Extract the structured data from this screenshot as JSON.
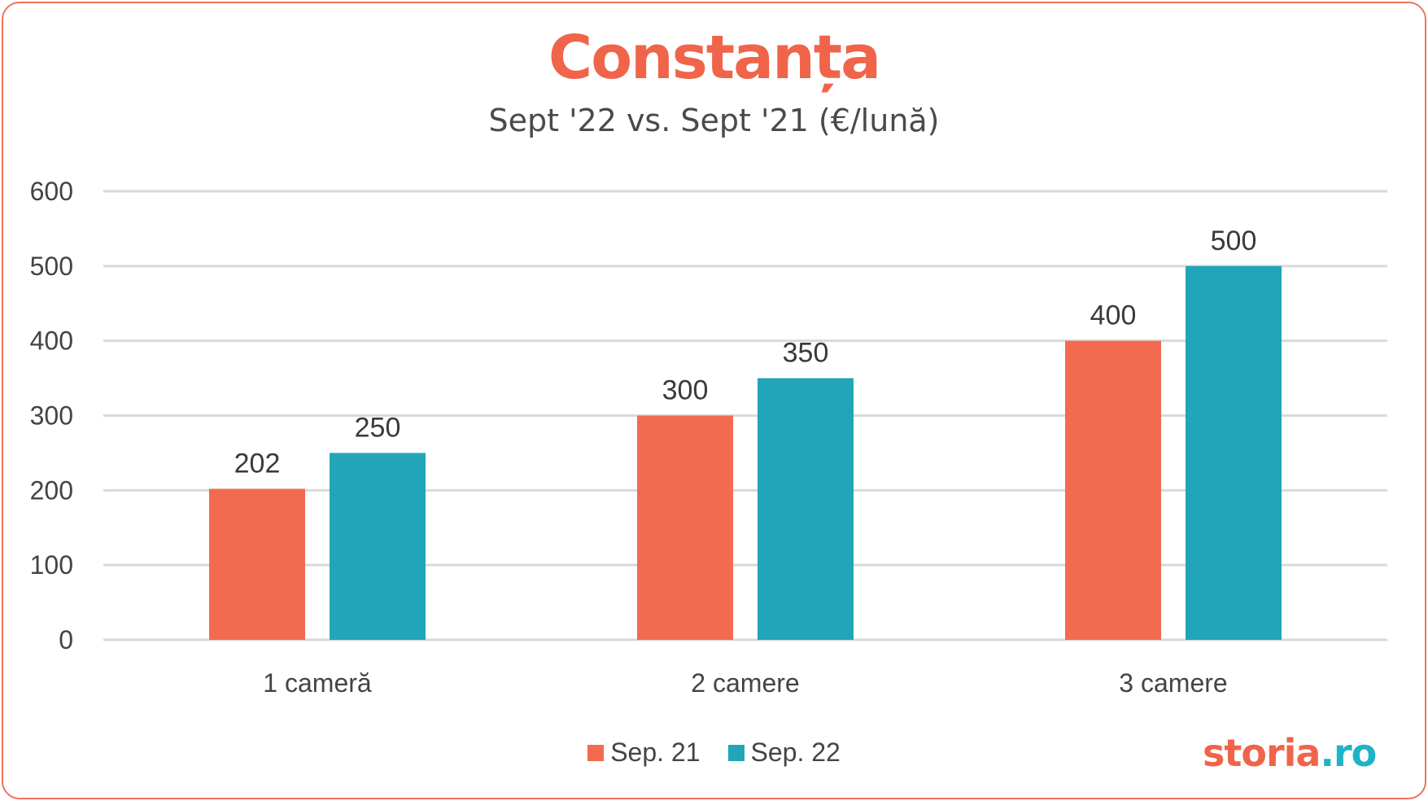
{
  "title": "Constanța",
  "subtitle": "Sept '22 vs. Sept '21 (€/lună)",
  "brand": {
    "name": "storia",
    "tld": ".ro"
  },
  "colors": {
    "accent": "#f0644a",
    "series1": "#f26b50",
    "series2": "#22a5b8",
    "grid": "#d9d9d9"
  },
  "chart_data": {
    "type": "bar",
    "categories": [
      "1 cameră",
      "2 camere",
      "3 camere"
    ],
    "series": [
      {
        "name": "Sep. 21",
        "values": [
          202,
          300,
          400
        ]
      },
      {
        "name": "Sep. 22",
        "values": [
          250,
          350,
          500
        ]
      }
    ],
    "title": "Constanța",
    "subtitle": "Sept '22 vs. Sept '21 (€/lună)",
    "ylim": [
      0,
      600
    ],
    "yticks": [
      0,
      100,
      200,
      300,
      400,
      500,
      600
    ],
    "grid": true,
    "legend": "bottom-center"
  }
}
